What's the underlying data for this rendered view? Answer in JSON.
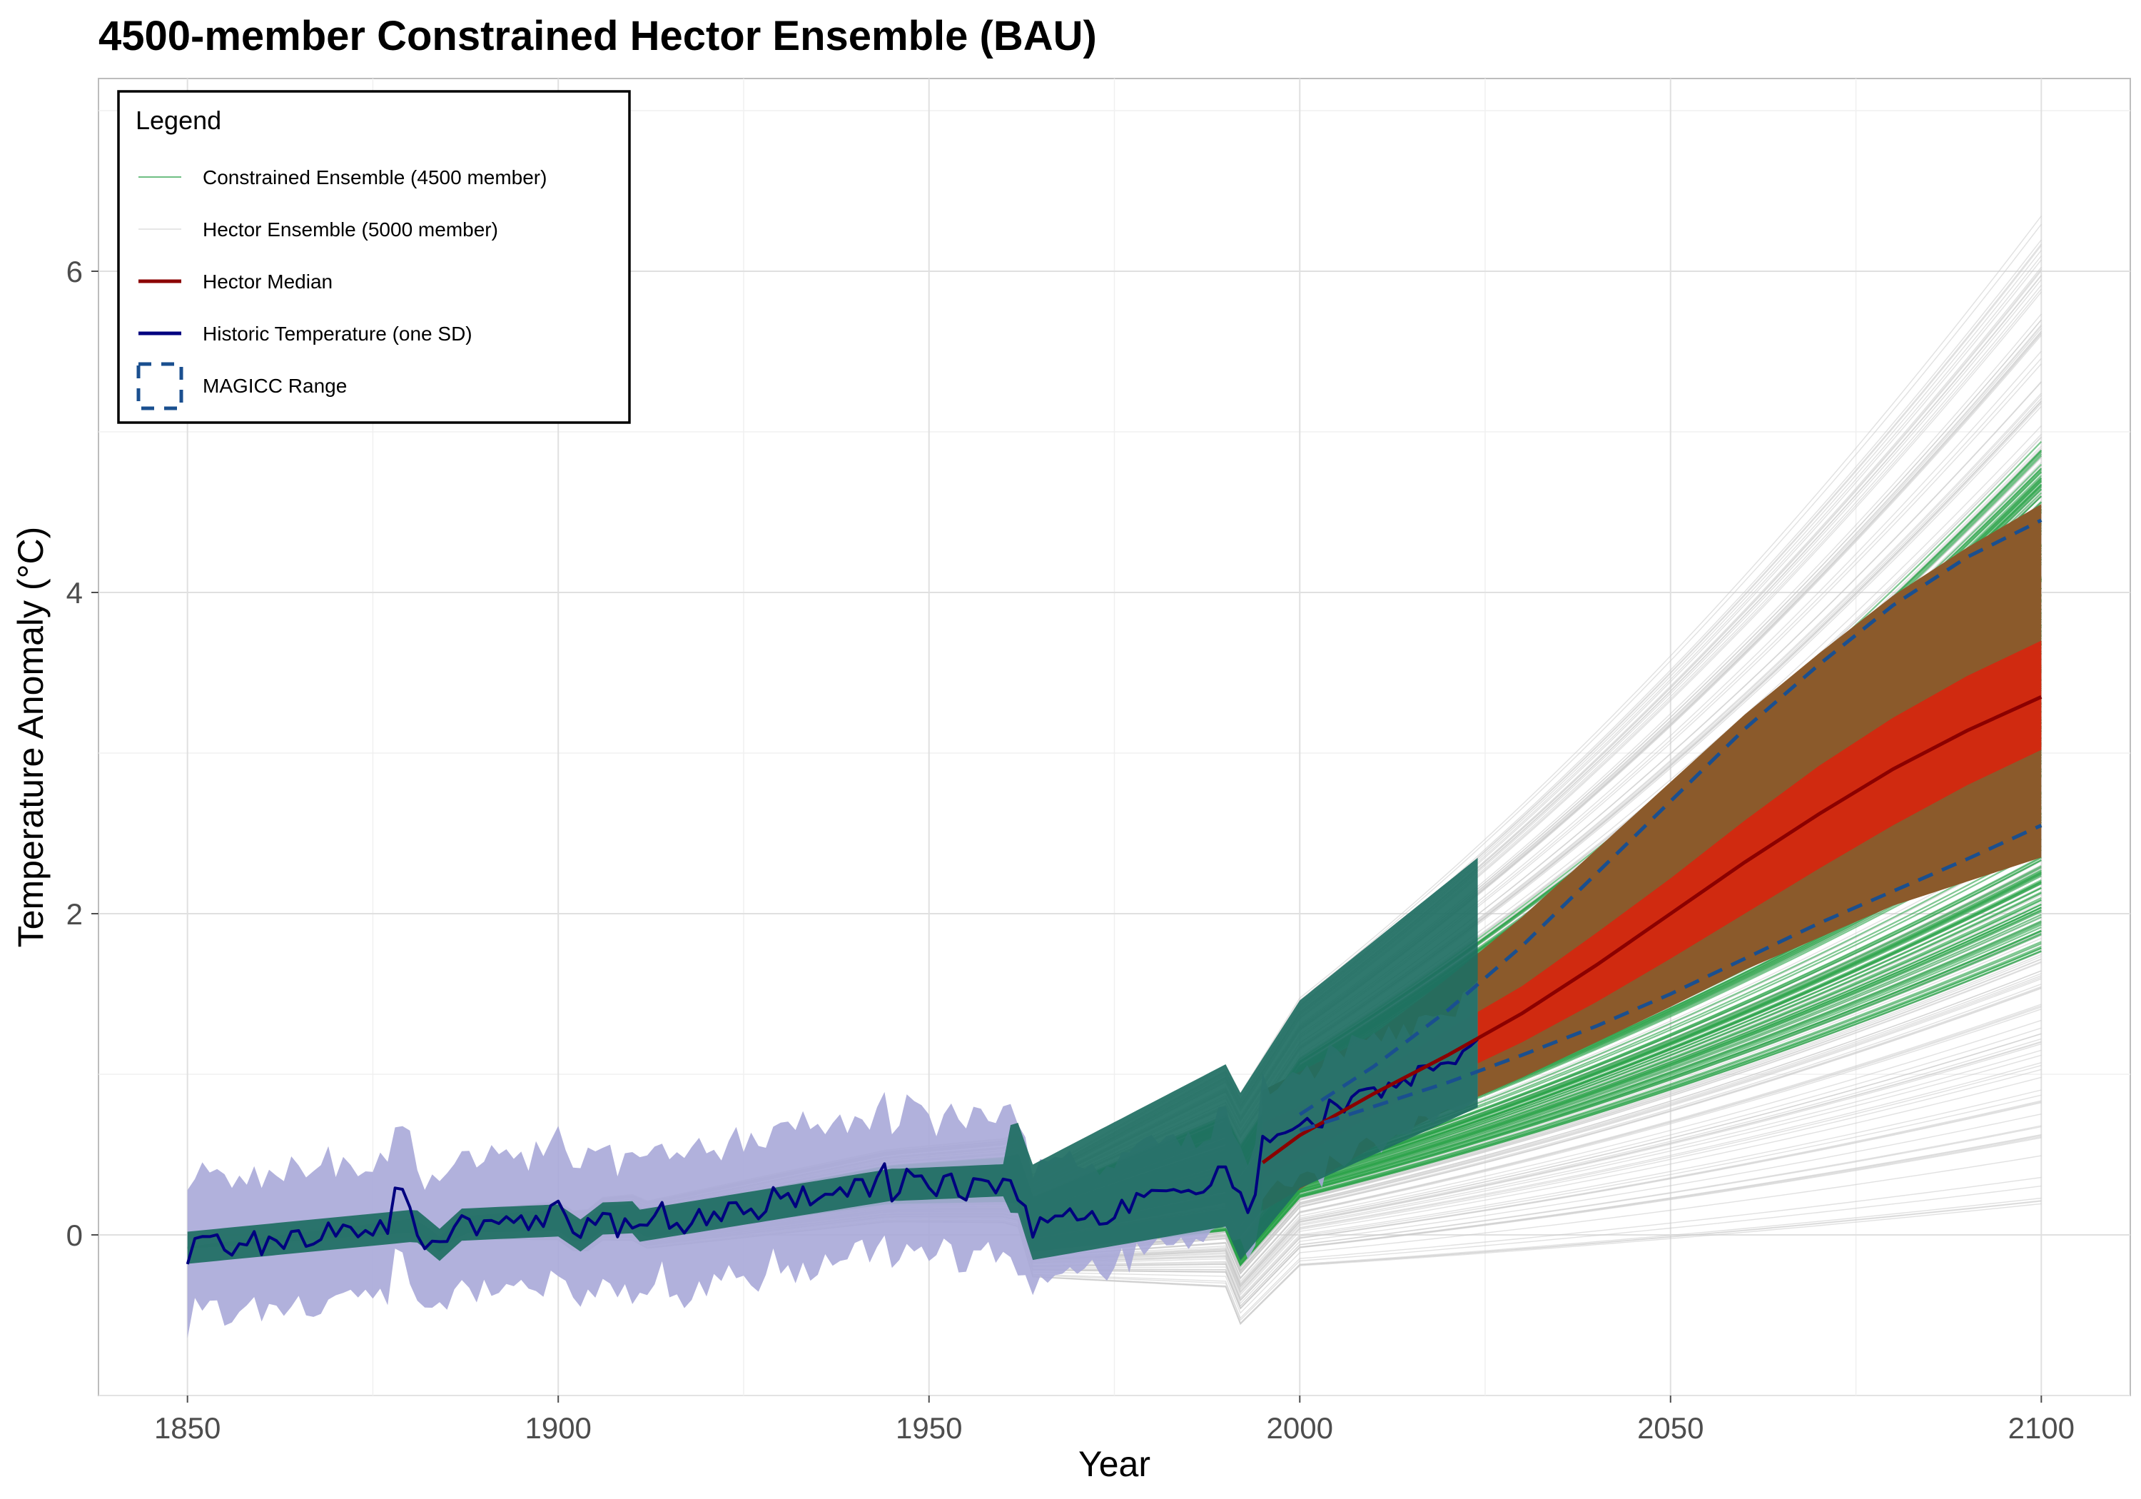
{
  "colors": {
    "hector_ensemble": "#c8c8c8",
    "constrained_ensemble": "#2ca34a",
    "constrained_band": "#27a346",
    "historic_overlap": "#1e6e62",
    "historic_band": "#a9a9d8",
    "historic_line": "#00007f",
    "hector_median": "#8b0000",
    "hector_band": "#8b5a2b",
    "hector_core": "#d02a10",
    "magicc": "#1a4f8f"
  },
  "chart_data": {
    "type": "line",
    "title": "4500-member Constrained Hector Ensemble (BAU)",
    "xlabel": "Year",
    "ylabel": "Temperature Anomaly (°C)",
    "xlim": [
      1838,
      2112
    ],
    "ylim": [
      -1.0,
      7.2
    ],
    "x_ticks": [
      1850,
      1900,
      1950,
      2000,
      2050,
      2100
    ],
    "y_ticks": [
      0,
      2,
      4,
      6
    ],
    "grid": true,
    "legend": {
      "title": "Legend",
      "position": "top-left",
      "entries": [
        {
          "label": "Constrained Ensemble (4500 member)",
          "kind": "thin-line",
          "color": "#6fbf84"
        },
        {
          "label": "Hector Ensemble (5000 member)",
          "kind": "thin-line",
          "color": "#e6e6e6"
        },
        {
          "label": "Hector Median",
          "kind": "line",
          "color": "#8b0000"
        },
        {
          "label": "Historic Temperature (one SD)",
          "kind": "line",
          "color": "#00007f"
        },
        {
          "label": "MAGICC Range",
          "kind": "dashed-box",
          "color": "#1a4f8f"
        }
      ]
    },
    "hector_ensemble_2100_range": [
      0.95,
      6.85
    ],
    "constrained_ensemble_2100_range": [
      2.0,
      5.2
    ],
    "hector_median": {
      "x": [
        1995,
        2000,
        2010,
        2020,
        2030,
        2040,
        2050,
        2060,
        2070,
        2080,
        2090,
        2100
      ],
      "y": [
        0.45,
        0.62,
        0.88,
        1.12,
        1.38,
        1.68,
        2.0,
        2.32,
        2.62,
        2.9,
        3.14,
        3.35
      ]
    },
    "hector_core_band": {
      "x": [
        1995,
        2010,
        2020,
        2030,
        2040,
        2050,
        2060,
        2070,
        2080,
        2090,
        2100
      ],
      "lower": [
        0.35,
        0.75,
        0.98,
        1.2,
        1.45,
        1.72,
        2.0,
        2.28,
        2.55,
        2.8,
        3.02
      ],
      "upper": [
        0.7,
        1.0,
        1.28,
        1.55,
        1.88,
        2.22,
        2.58,
        2.92,
        3.22,
        3.48,
        3.7
      ]
    },
    "hector_wide_band": {
      "x": [
        1995,
        2010,
        2020,
        2030,
        2040,
        2050,
        2060,
        2070,
        2080,
        2090,
        2100
      ],
      "lower": [
        0.15,
        0.55,
        0.78,
        0.98,
        1.2,
        1.42,
        1.65,
        1.85,
        2.05,
        2.2,
        2.35
      ],
      "upper": [
        0.9,
        1.25,
        1.6,
        1.98,
        2.4,
        2.82,
        3.24,
        3.62,
        3.98,
        4.28,
        4.55
      ]
    },
    "magicc_range": {
      "x": [
        2000,
        2010,
        2020,
        2030,
        2040,
        2050,
        2060,
        2070,
        2080,
        2090,
        2100
      ],
      "lower": [
        0.65,
        0.8,
        0.95,
        1.12,
        1.3,
        1.5,
        1.72,
        1.94,
        2.14,
        2.34,
        2.55
      ],
      "upper": [
        0.75,
        1.05,
        1.4,
        1.8,
        2.25,
        2.7,
        3.15,
        3.55,
        3.92,
        4.22,
        4.45
      ]
    },
    "historic_temperature": {
      "start_year": 1850,
      "end_year": 2024,
      "sd_band_note": "shaded one SD band around the series"
    }
  }
}
